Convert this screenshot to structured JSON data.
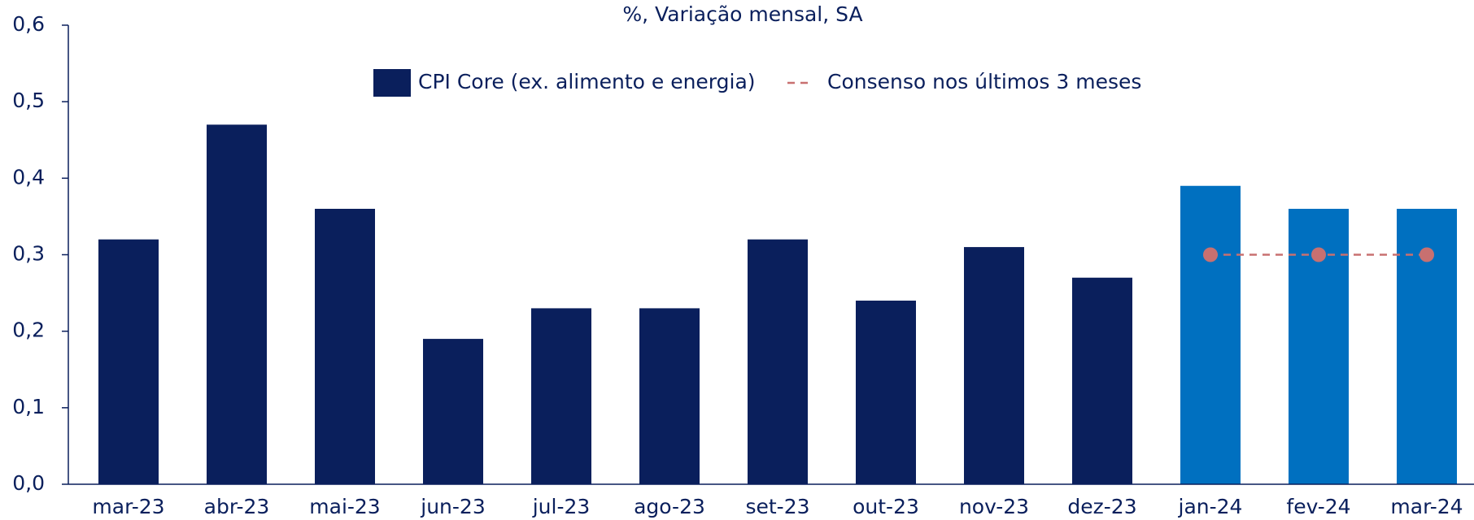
{
  "chart_data": {
    "type": "bar",
    "title": "%, Variação mensal, SA",
    "categories": [
      "mar-23",
      "abr-23",
      "mai-23",
      "jun-23",
      "jul-23",
      "ago-23",
      "set-23",
      "out-23",
      "nov-23",
      "dez-23",
      "jan-24",
      "fev-24",
      "mar-24"
    ],
    "series": [
      {
        "name": "CPI Core (ex. alimento e energia)",
        "color": "#0a1f5c",
        "colors": [
          "#0a1f5c",
          "#0a1f5c",
          "#0a1f5c",
          "#0a1f5c",
          "#0a1f5c",
          "#0a1f5c",
          "#0a1f5c",
          "#0a1f5c",
          "#0a1f5c",
          "#0a1f5c",
          "#0070c0",
          "#0070c0",
          "#0070c0"
        ],
        "values": [
          0.32,
          0.47,
          0.36,
          0.19,
          0.23,
          0.23,
          0.32,
          0.24,
          0.31,
          0.27,
          0.39,
          0.36,
          0.36
        ]
      },
      {
        "name": "Consenso nos últimos 3 meses",
        "color": "#c87070",
        "type": "line",
        "dashed": true,
        "values": [
          null,
          null,
          null,
          null,
          null,
          null,
          null,
          null,
          null,
          null,
          0.3,
          0.3,
          0.3
        ]
      }
    ],
    "ylim": [
      0,
      0.6
    ],
    "yticks": [
      {
        "value": 0,
        "label": "0,0"
      },
      {
        "value": 0.1,
        "label": "0,1"
      },
      {
        "value": 0.2,
        "label": "0,2"
      },
      {
        "value": 0.3,
        "label": "0,3"
      },
      {
        "value": 0.4,
        "label": "0,4"
      },
      {
        "value": 0.5,
        "label": "0,5"
      },
      {
        "value": 0.6,
        "label": "0,6"
      }
    ],
    "grid": false,
    "legend": "top"
  }
}
